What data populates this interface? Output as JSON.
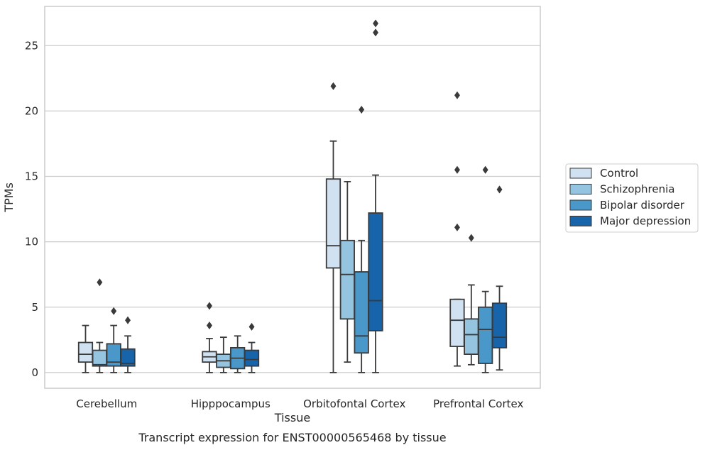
{
  "chart_data": {
    "type": "box",
    "title": "Transcript expression for ENST00000565468 by tissue",
    "xlabel": "Tissue",
    "ylabel": "TPMs",
    "ylim": [
      -1.2,
      28
    ],
    "yticks": [
      0,
      5,
      10,
      15,
      20,
      25
    ],
    "grid": "horizontal",
    "legend_position": "right",
    "categories": [
      "Cerebellum",
      "Hipppocampus",
      "Orbitofontal Cortex",
      "Prefrontal Cortex"
    ],
    "series": [
      {
        "name": "Control",
        "color": "#d0e1f2",
        "boxes": [
          {
            "whislo": 0,
            "q1": 0.8,
            "med": 1.4,
            "q3": 2.3,
            "whishi": 3.6,
            "fliers": []
          },
          {
            "whislo": 0,
            "q1": 0.8,
            "med": 1.2,
            "q3": 1.6,
            "whishi": 2.6,
            "fliers": [
              3.6,
              5.1
            ]
          },
          {
            "whislo": 0,
            "q1": 8.0,
            "med": 9.7,
            "q3": 14.8,
            "whishi": 17.7,
            "fliers": [
              21.9
            ]
          },
          {
            "whislo": 0.5,
            "q1": 2.0,
            "med": 4.0,
            "q3": 5.6,
            "whishi": 5.6,
            "fliers": [
              11.1,
              15.5,
              21.2
            ]
          }
        ]
      },
      {
        "name": "Schizophrenia",
        "color": "#94c4df",
        "boxes": [
          {
            "whislo": 0,
            "q1": 0.5,
            "med": 0.6,
            "q3": 1.7,
            "whishi": 2.3,
            "fliers": [
              6.9
            ]
          },
          {
            "whislo": 0,
            "q1": 0.4,
            "med": 0.9,
            "q3": 1.4,
            "whishi": 2.7,
            "fliers": []
          },
          {
            "whislo": 0.8,
            "q1": 4.1,
            "med": 7.5,
            "q3": 10.1,
            "whishi": 14.6,
            "fliers": []
          },
          {
            "whislo": 0.6,
            "q1": 1.4,
            "med": 2.9,
            "q3": 4.1,
            "whishi": 6.7,
            "fliers": [
              10.3
            ]
          }
        ]
      },
      {
        "name": "Bipolar disorder",
        "color": "#4a98c9",
        "boxes": [
          {
            "whislo": 0,
            "q1": 0.5,
            "med": 0.8,
            "q3": 2.2,
            "whishi": 3.6,
            "fliers": [
              4.7
            ]
          },
          {
            "whislo": 0,
            "q1": 0.3,
            "med": 1.1,
            "q3": 1.9,
            "whishi": 2.8,
            "fliers": []
          },
          {
            "whislo": 0,
            "q1": 1.5,
            "med": 2.8,
            "q3": 7.7,
            "whishi": 10.1,
            "fliers": [
              20.1
            ]
          },
          {
            "whislo": 0,
            "q1": 0.7,
            "med": 3.3,
            "q3": 5.0,
            "whishi": 6.2,
            "fliers": [
              15.5
            ]
          }
        ]
      },
      {
        "name": "Major depression",
        "color": "#1764ab",
        "boxes": [
          {
            "whislo": 0,
            "q1": 0.5,
            "med": 0.7,
            "q3": 1.8,
            "whishi": 2.8,
            "fliers": [
              4.0
            ]
          },
          {
            "whislo": 0,
            "q1": 0.5,
            "med": 1.0,
            "q3": 1.7,
            "whishi": 2.3,
            "fliers": [
              3.5
            ]
          },
          {
            "whislo": 0,
            "q1": 3.2,
            "med": 5.5,
            "q3": 12.2,
            "whishi": 15.1,
            "fliers": [
              26.0,
              26.7
            ]
          },
          {
            "whislo": 0.2,
            "q1": 1.9,
            "med": 2.7,
            "q3": 5.3,
            "whishi": 6.6,
            "fliers": [
              14.0
            ]
          }
        ]
      }
    ]
  }
}
